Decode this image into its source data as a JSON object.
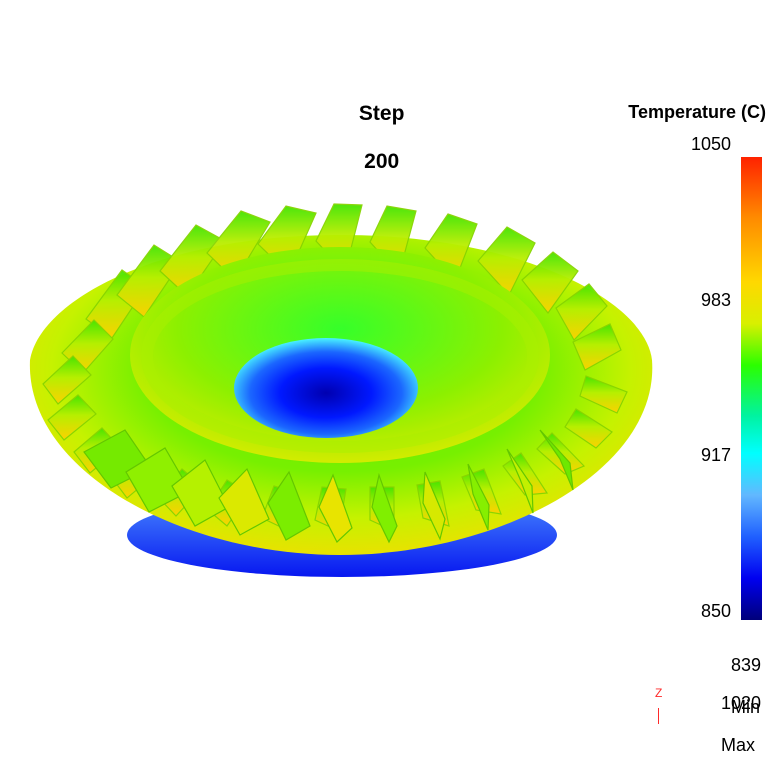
{
  "title": {
    "prefix": "Step",
    "value": "200"
  },
  "legend": {
    "title": "Temperature (C)",
    "ticks": [
      "1050",
      "983",
      "917",
      "850"
    ],
    "min": {
      "value": "839",
      "label": "Min"
    },
    "max": {
      "value": "1020",
      "label": "Max"
    }
  },
  "axis": {
    "label": "Z"
  },
  "colors": {
    "hot": "#ff2200",
    "orange": "#ff8a00",
    "yellow": "#ffd800",
    "green": "#2bff00",
    "cyan": "#00ffff",
    "blue": "#2060ff",
    "dark_blue": "#00007a"
  }
}
